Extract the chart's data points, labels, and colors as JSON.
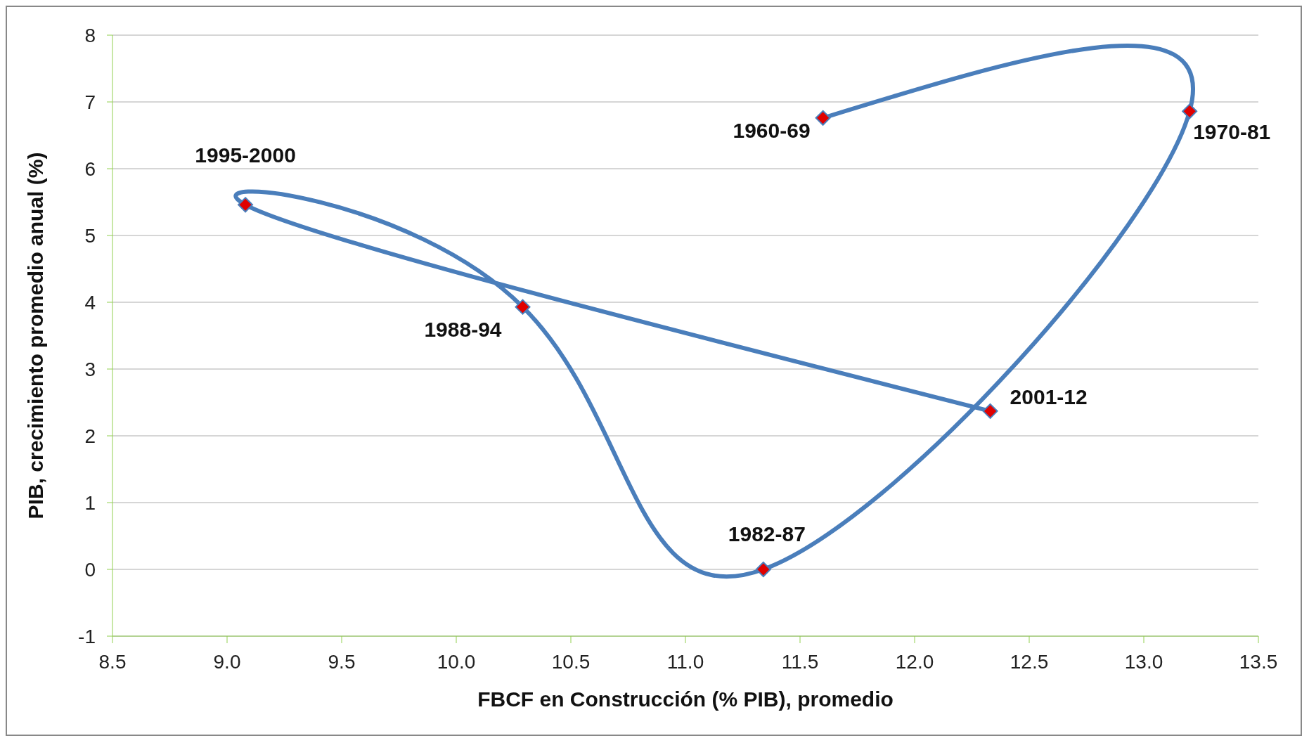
{
  "chart_data": {
    "type": "line",
    "xlabel": "FBCF en Construcción (% PIB), promedio",
    "ylabel": "PIB, crecimiento promedio anual (%)",
    "series": [
      {
        "color": "#4a7ebb",
        "x": [
          11.6,
          13.2,
          11.34,
          10.29,
          9.08,
          12.33
        ],
        "values": [
          6.76,
          6.86,
          0,
          3.93,
          5.46,
          2.37
        ]
      }
    ],
    "xlim": [
      8.5,
      13.5
    ],
    "xticks": [
      8.5,
      {
        "value": 9,
        "label": "9.0"
      },
      9.5,
      {
        "value": 10,
        "label": "10.0"
      },
      10.5,
      {
        "value": 11,
        "label": "11.0"
      },
      11.5,
      {
        "value": 12,
        "label": "12.0"
      },
      12.5,
      {
        "value": 13,
        "label": "13.0"
      },
      13.5
    ],
    "ylim": [
      -1,
      8
    ],
    "yticks": [
      -1,
      0,
      1,
      2,
      3,
      4,
      5,
      6,
      7,
      8
    ],
    "annotations": [
      {
        "text": "1960-69",
        "x": 11.6,
        "y": 6.76
      },
      {
        "text": "1970-81",
        "x": 13.2,
        "y": 6.86
      },
      {
        "text": "1982-87",
        "x": 11.34,
        "y": 0
      },
      {
        "text": "1988-94",
        "x": 10.29,
        "y": 3.93
      },
      {
        "text": "1995-2000",
        "x": 9.08,
        "y": 5.46
      },
      {
        "text": "2001-12",
        "x": 12.33,
        "y": 2.37
      }
    ],
    "grid": "y",
    "marker": "diamond",
    "line_style": "solid"
  }
}
